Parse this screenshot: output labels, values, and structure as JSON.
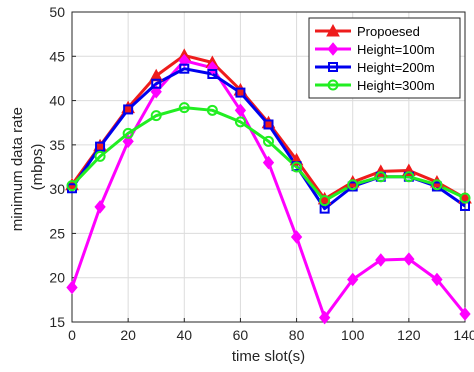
{
  "chart_data": {
    "type": "line",
    "xlabel": "time slot(s)",
    "ylabel_lines": [
      "minimum data rate",
      "(mbps)"
    ],
    "xlim": [
      0,
      140
    ],
    "ylim": [
      15,
      50
    ],
    "xticks": [
      0,
      20,
      40,
      60,
      80,
      100,
      120,
      140
    ],
    "yticks": [
      15,
      20,
      25,
      30,
      35,
      40,
      45,
      50
    ],
    "grid": true,
    "legend_position": "top-right",
    "x": [
      0,
      10,
      20,
      30,
      40,
      50,
      60,
      70,
      80,
      90,
      100,
      110,
      120,
      130,
      140
    ],
    "series": [
      {
        "name": "Propoesed",
        "color": "#ee1c1c",
        "marker": "triangle",
        "values": [
          30.5,
          34.9,
          39.2,
          42.8,
          45.1,
          44.3,
          41.2,
          37.5,
          33.3,
          28.9,
          30.8,
          32.0,
          32.1,
          30.8,
          29.0
        ]
      },
      {
        "name": "Height=100m",
        "color": "#ff00ff",
        "marker": "diamond",
        "values": [
          18.9,
          28.0,
          35.4,
          41.0,
          44.5,
          43.7,
          38.9,
          33.0,
          24.6,
          15.5,
          19.8,
          22.0,
          22.1,
          19.8,
          15.9
        ]
      },
      {
        "name": "Height=200m",
        "color": "#0000ee",
        "marker": "square",
        "values": [
          30.1,
          34.8,
          39.0,
          41.9,
          43.6,
          43.0,
          40.9,
          37.3,
          32.6,
          27.8,
          30.3,
          31.4,
          31.4,
          30.3,
          28.1
        ]
      },
      {
        "name": "Height=300m",
        "color": "#22ee22",
        "marker": "circle",
        "values": [
          30.4,
          33.7,
          36.3,
          38.3,
          39.2,
          38.9,
          37.6,
          35.4,
          32.5,
          28.7,
          30.5,
          31.4,
          31.4,
          30.5,
          29.0
        ]
      }
    ]
  }
}
